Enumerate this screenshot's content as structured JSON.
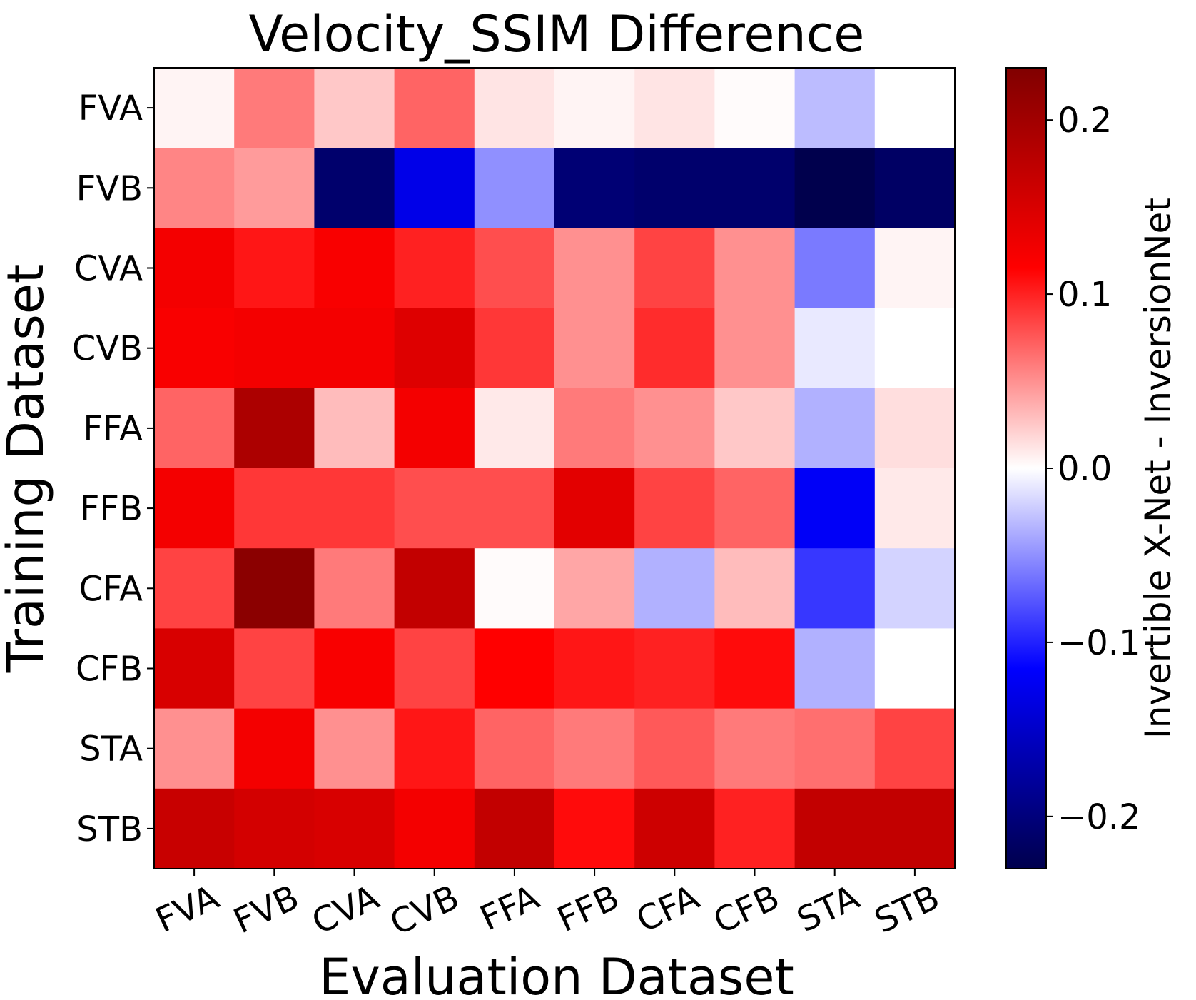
{
  "chart_data": {
    "type": "heatmap",
    "title": "Velocity_SSIM Difference",
    "xlabel": "Evaluation Dataset",
    "ylabel": "Training Dataset",
    "colorbar_label": "Invertible X-Net - InversionNet",
    "colormap": "seismic",
    "vmin": -0.23,
    "vmax": 0.23,
    "colorbar_ticks": [
      0.2,
      0.1,
      0.0,
      -0.1,
      -0.2
    ],
    "colorbar_tick_labels": [
      "0.2",
      "0.1",
      "0.0",
      "−0.1",
      "−0.2"
    ],
    "x_categories": [
      "FVA",
      "FVB",
      "CVA",
      "CVB",
      "FFA",
      "FFB",
      "CFA",
      "CFB",
      "STA",
      "STB"
    ],
    "y_categories": [
      "FVA",
      "FVB",
      "CVA",
      "CVB",
      "FFA",
      "FFB",
      "CFA",
      "CFB",
      "STA",
      "STB"
    ],
    "values": [
      [
        0.005,
        0.06,
        0.025,
        0.07,
        0.012,
        0.005,
        0.012,
        0.002,
        -0.03,
        0.0
      ],
      [
        0.055,
        0.045,
        -0.21,
        -0.13,
        -0.05,
        -0.205,
        -0.21,
        -0.21,
        -0.23,
        -0.215
      ],
      [
        0.125,
        0.105,
        0.12,
        0.1,
        0.08,
        0.05,
        0.085,
        0.05,
        -0.06,
        0.005
      ],
      [
        0.12,
        0.125,
        0.125,
        0.145,
        0.09,
        0.05,
        0.095,
        0.05,
        -0.01,
        0.0
      ],
      [
        0.07,
        0.19,
        0.03,
        0.125,
        0.01,
        0.06,
        0.05,
        0.025,
        -0.035,
        0.015
      ],
      [
        0.125,
        0.09,
        0.09,
        0.08,
        0.08,
        0.14,
        0.085,
        0.07,
        -0.12,
        0.01
      ],
      [
        0.085,
        0.22,
        0.06,
        0.17,
        0.002,
        0.04,
        -0.035,
        0.03,
        -0.09,
        -0.02
      ],
      [
        0.15,
        0.085,
        0.12,
        0.085,
        0.115,
        0.105,
        0.1,
        0.11,
        -0.035,
        0.0
      ],
      [
        0.05,
        0.125,
        0.05,
        0.105,
        0.07,
        0.06,
        0.075,
        0.06,
        0.065,
        0.085
      ],
      [
        0.165,
        0.155,
        0.15,
        0.125,
        0.17,
        0.11,
        0.16,
        0.1,
        0.17,
        0.17
      ]
    ]
  }
}
